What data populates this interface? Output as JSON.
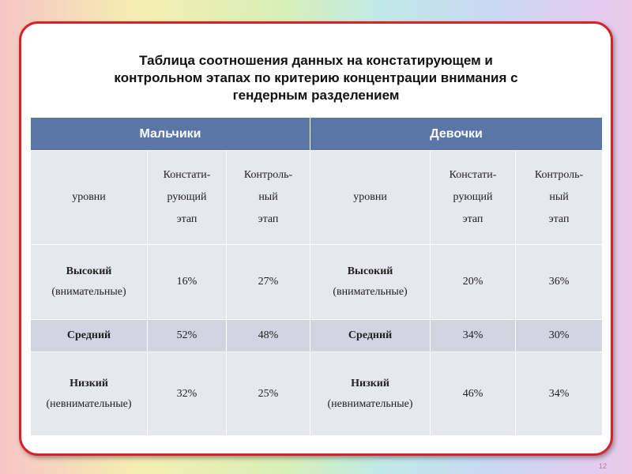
{
  "title": {
    "line1": "Таблица соотношения данных на констатирующем и",
    "line2": "контрольном этапах по  критерию концентрации внимания  с",
    "line3": "гендерным разделением"
  },
  "table": {
    "groups": [
      "Мальчики",
      "Девочки"
    ],
    "subheaders": {
      "levels": "уровни",
      "stage1": [
        "Констати-",
        "рующий",
        "этап"
      ],
      "stage2": [
        "Контроль-",
        "ный",
        "этап"
      ]
    },
    "rows": [
      {
        "level_name": "Высокий",
        "level_note": "(внимательные)",
        "boys": [
          "16%",
          "27%"
        ],
        "girls": [
          "20%",
          "36%"
        ]
      },
      {
        "level_name": "Средний",
        "level_note": "",
        "boys": [
          "52%",
          "48%"
        ],
        "girls": [
          "34%",
          "30%"
        ]
      },
      {
        "level_name": "Низкий",
        "level_note": "(невнимательные)",
        "boys": [
          "32%",
          "25%"
        ],
        "girls": [
          "46%",
          "34%"
        ]
      }
    ]
  },
  "slide_number": "12"
}
